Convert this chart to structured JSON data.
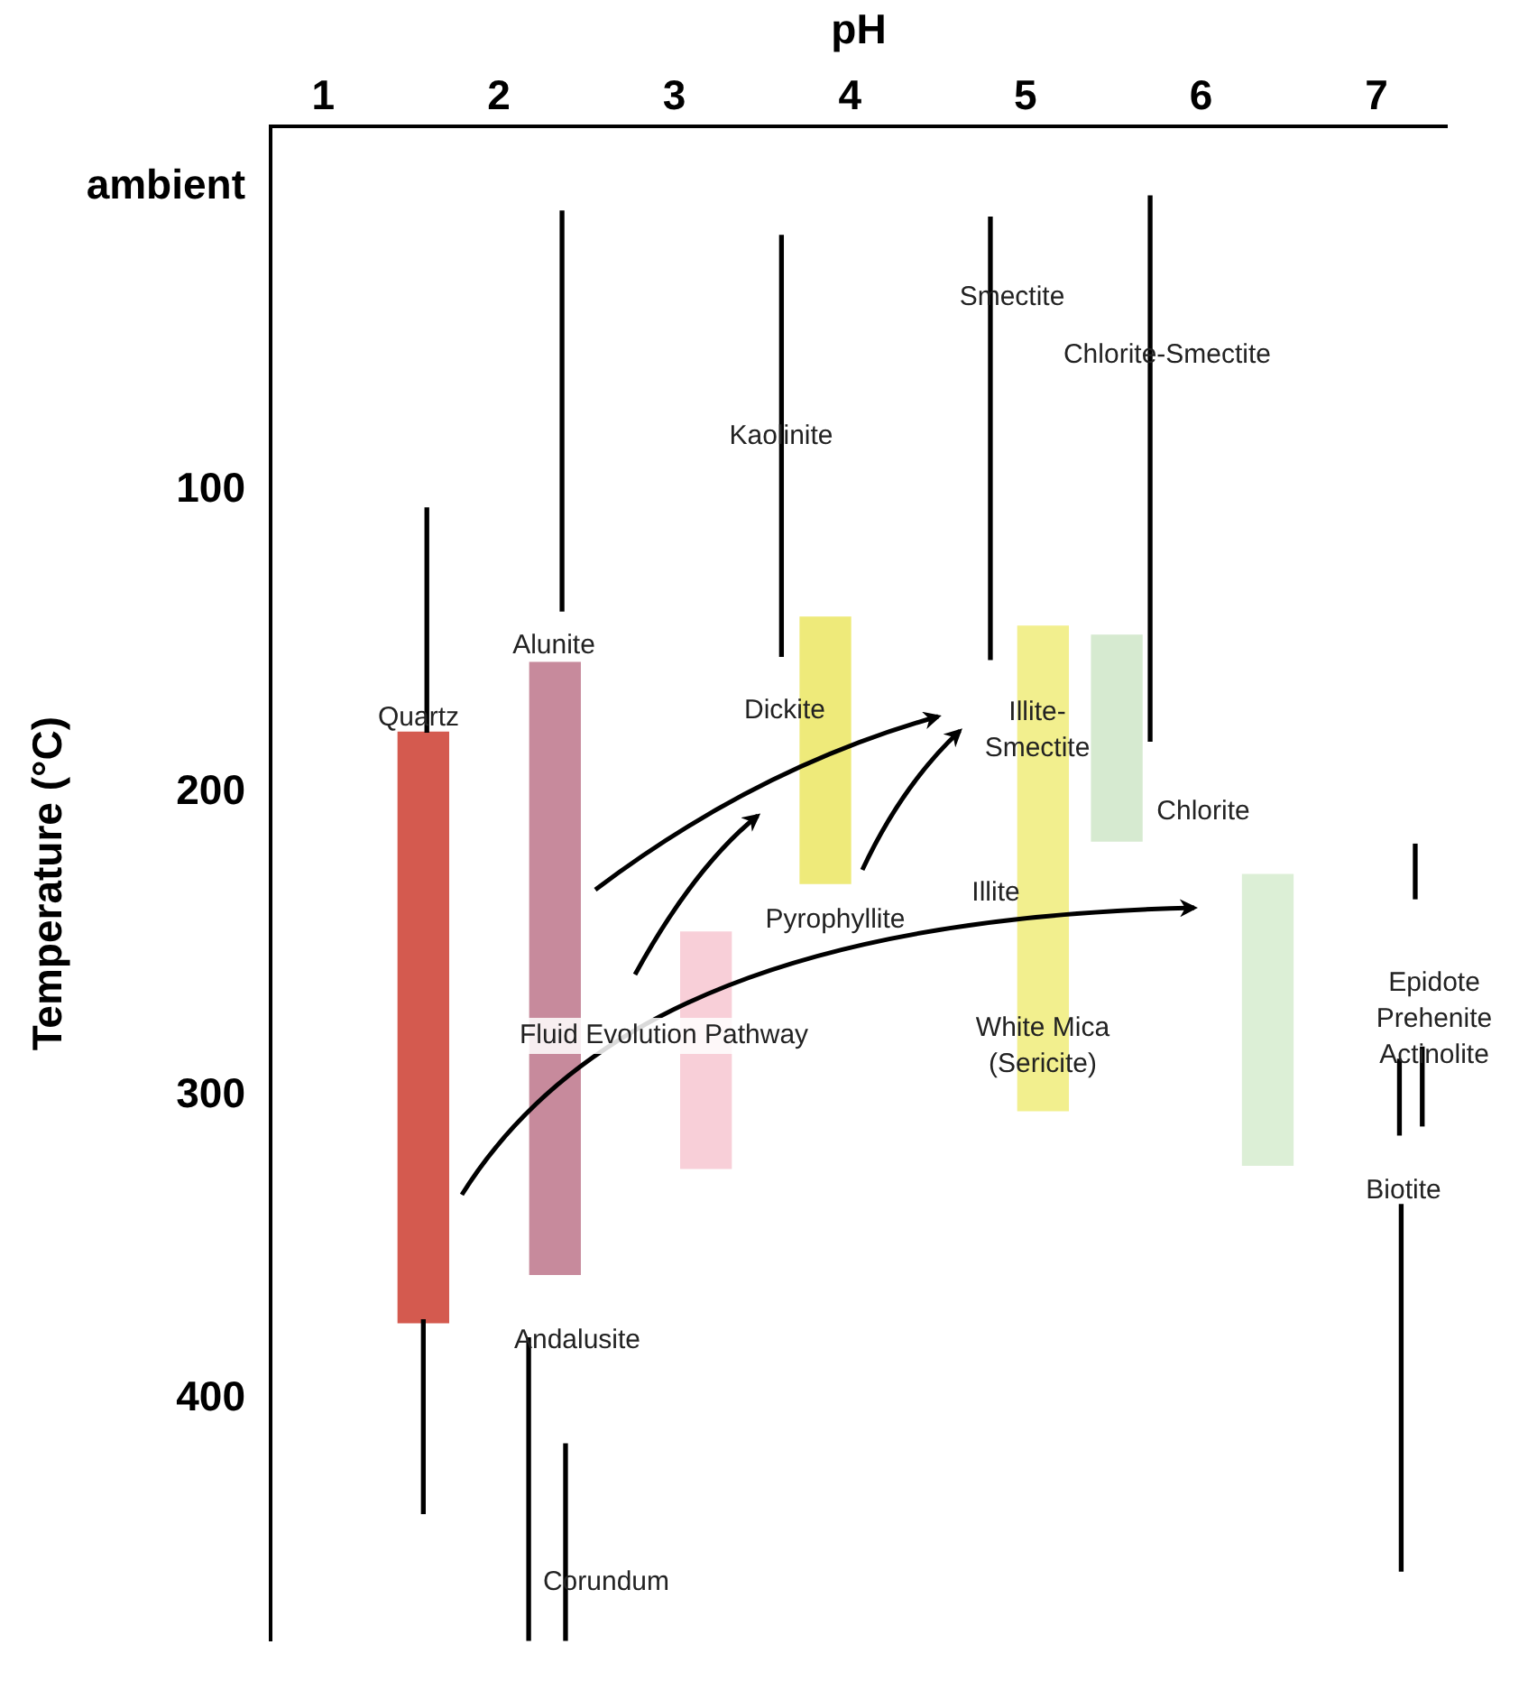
{
  "chart_data": {
    "type": "bar",
    "xlabel": "pH",
    "ylabel": "Temperature (°C)",
    "xlim": [
      0.7,
      7.4
    ],
    "xticks": [
      1,
      2,
      3,
      4,
      5,
      6,
      7
    ],
    "ylim": [
      480,
      -20
    ],
    "yticks": [
      {
        "value": 0,
        "label": "ambient"
      },
      100,
      200,
      300,
      400
    ],
    "grid": false,
    "legend": false,
    "series": [
      {
        "type": "bar",
        "x": [
          1.57,
          2.32,
          3.18,
          3.86,
          5.1,
          5.52,
          6.38
        ],
        "base": [
          180,
          157,
          246,
          142,
          145,
          148,
          227
        ],
        "values": [
          195,
          202,
          78,
          88,
          160,
          68,
          96
        ],
        "colors": [
          "#d45a4f",
          "#c78a9c",
          "#f8cfd8",
          "#eeea7a",
          "#f2ef8e",
          "#d6ead0",
          "#dcefd6"
        ]
      },
      {
        "type": "bar",
        "x": [
          1.57,
          1.59,
          2.17,
          2.36,
          2.38,
          3.61,
          4.8,
          5.71,
          7.13,
          7.14,
          7.22,
          7.26
        ],
        "base": [
          374,
          106,
          380,
          8,
          415,
          16,
          10,
          3,
          288,
          336,
          217,
          284
        ],
        "values": [
          64,
          74,
          100,
          132,
          65,
          139,
          146,
          180,
          25,
          121,
          18,
          26
        ],
        "color": "#000000"
      }
    ],
    "annotations": [
      "Quartz",
      "Alunite",
      "Andalusite",
      "Corundum",
      "Kaolinite",
      "Dickite",
      "Pyrophyllite",
      "Smectite",
      "Chlorite-Smectite",
      "Illite-\nSmectite",
      "Illite",
      "White Mica\n(Sericite)",
      "Chlorite",
      "Epidote\nPrehenite\nActinolite",
      "Biotite",
      "Fluid Evolution Pathway"
    ]
  }
}
